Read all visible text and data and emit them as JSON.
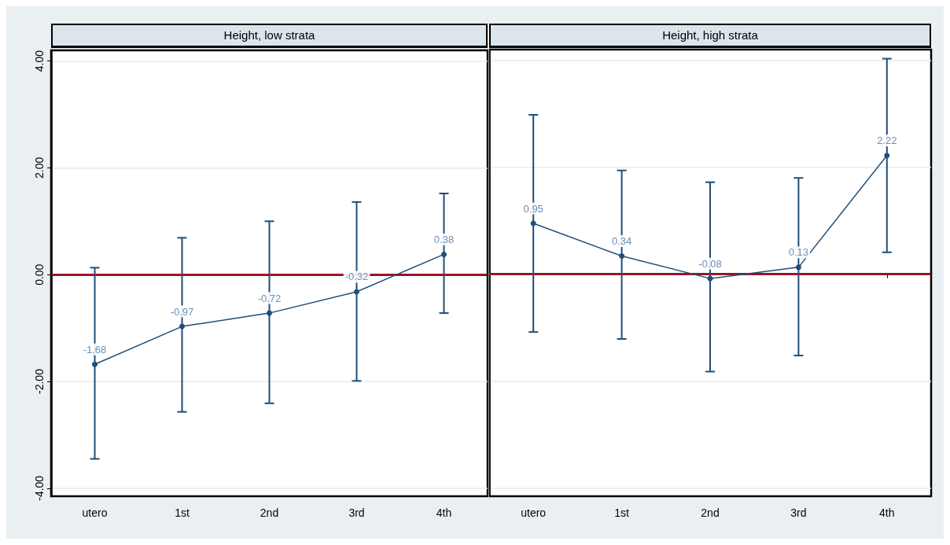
{
  "chart_data": [
    {
      "type": "line",
      "title": "Height, low strata",
      "categories": [
        "utero",
        "1st",
        "2nd",
        "3rd",
        "4th"
      ],
      "series": [
        {
          "color": "#1f4e79",
          "values": [
            -1.68,
            -0.97,
            -0.72,
            -0.32,
            0.38
          ],
          "errors": [
            [
              -3.45,
              0.13
            ],
            [
              -2.57,
              0.69
            ],
            [
              -2.41,
              1.0
            ],
            [
              -1.99,
              1.36
            ],
            [
              -0.72,
              1.52
            ]
          ]
        }
      ],
      "ylim": [
        -4.15,
        4.2
      ],
      "yticks": [
        {
          "value": -4,
          "label": "-4.00"
        },
        {
          "value": -2,
          "label": "-2.00"
        },
        {
          "value": 0,
          "label": "0.00"
        },
        {
          "value": 2,
          "label": "2.00"
        },
        {
          "value": 4,
          "label": "4.00"
        }
      ],
      "ref_lines": [
        {
          "axis": "y",
          "value": 0,
          "color": "#c8102e"
        }
      ],
      "data_labels": true,
      "grid": "y",
      "marker": "circle"
    },
    {
      "type": "line",
      "title": "Height, high strata",
      "categories": [
        "utero",
        "1st",
        "2nd",
        "3rd",
        "4th"
      ],
      "series": [
        {
          "color": "#1f4e79",
          "values": [
            0.95,
            0.34,
            -0.08,
            0.13,
            2.22
          ],
          "errors": [
            [
              -1.08,
              2.98
            ],
            [
              -1.21,
              1.94
            ],
            [
              -1.82,
              1.72
            ],
            [
              -1.52,
              1.8
            ],
            [
              0.41,
              4.03
            ]
          ]
        }
      ],
      "ylim": [
        -4.15,
        4.2
      ],
      "yticks": [
        -4,
        -2,
        0,
        2,
        4
      ],
      "ref_lines": [
        {
          "axis": "y",
          "value": 0,
          "color": "#c8102e"
        }
      ],
      "data_labels": true,
      "grid": "y",
      "marker": "circle",
      "tick_labels": "x"
    }
  ]
}
